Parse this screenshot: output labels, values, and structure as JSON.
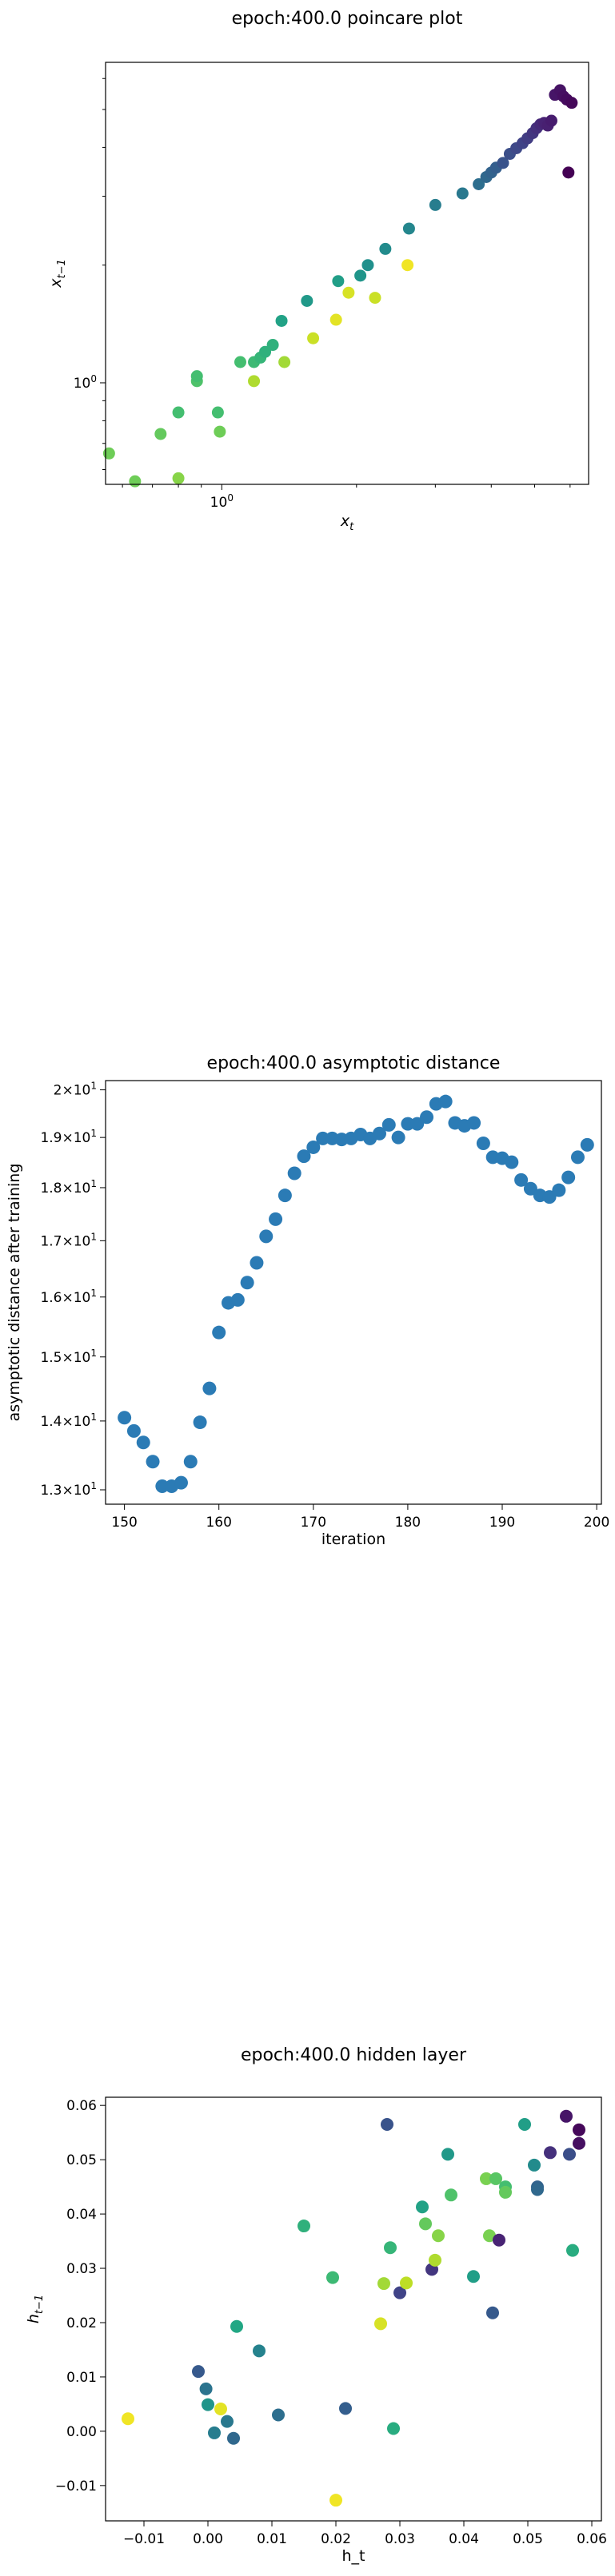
{
  "charts": [
    {
      "type": "scatter",
      "title": "epoch:400.0 poincare plot",
      "xlabel": "x_t",
      "ylabel": "x_{t−1}",
      "xscale": "log",
      "yscale": "log",
      "xlim": [
        0.55,
        6.6
      ],
      "ylim": [
        0.55,
        6.6
      ],
      "xticks": [
        {
          "value": 1,
          "label": "10^0"
        }
      ],
      "yticks": [
        {
          "value": 1,
          "label": "10^0"
        }
      ],
      "color_map": "viridis",
      "points": [
        {
          "x": 0.56,
          "y": 0.66,
          "c": 0.78
        },
        {
          "x": 0.64,
          "y": 0.56,
          "c": 0.78
        },
        {
          "x": 0.73,
          "y": 0.74,
          "c": 0.76
        },
        {
          "x": 0.8,
          "y": 0.84,
          "c": 0.7
        },
        {
          "x": 0.8,
          "y": 0.57,
          "c": 0.82
        },
        {
          "x": 0.88,
          "y": 1.01,
          "c": 0.72
        },
        {
          "x": 0.88,
          "y": 1.04,
          "c": 0.7
        },
        {
          "x": 0.98,
          "y": 0.84,
          "c": 0.7
        },
        {
          "x": 0.99,
          "y": 0.75,
          "c": 0.78
        },
        {
          "x": 1.1,
          "y": 1.13,
          "c": 0.7
        },
        {
          "x": 1.18,
          "y": 1.13,
          "c": 0.68
        },
        {
          "x": 1.18,
          "y": 1.01,
          "c": 0.88
        },
        {
          "x": 1.22,
          "y": 1.16,
          "c": 0.66
        },
        {
          "x": 1.25,
          "y": 1.2,
          "c": 0.64
        },
        {
          "x": 1.3,
          "y": 1.25,
          "c": 0.64
        },
        {
          "x": 1.38,
          "y": 1.13,
          "c": 0.86
        },
        {
          "x": 1.36,
          "y": 1.44,
          "c": 0.58
        },
        {
          "x": 1.55,
          "y": 1.62,
          "c": 0.54
        },
        {
          "x": 1.6,
          "y": 1.3,
          "c": 0.92
        },
        {
          "x": 1.8,
          "y": 1.45,
          "c": 0.96
        },
        {
          "x": 1.82,
          "y": 1.82,
          "c": 0.56
        },
        {
          "x": 1.92,
          "y": 1.7,
          "c": 0.94
        },
        {
          "x": 2.04,
          "y": 1.88,
          "c": 0.52
        },
        {
          "x": 2.12,
          "y": 2.0,
          "c": 0.5
        },
        {
          "x": 2.2,
          "y": 1.65,
          "c": 0.92
        },
        {
          "x": 2.32,
          "y": 2.2,
          "c": 0.48
        },
        {
          "x": 2.6,
          "y": 2.0,
          "c": 0.98
        },
        {
          "x": 2.62,
          "y": 2.48,
          "c": 0.46
        },
        {
          "x": 3.0,
          "y": 2.85,
          "c": 0.42
        },
        {
          "x": 3.45,
          "y": 3.05,
          "c": 0.4
        },
        {
          "x": 3.75,
          "y": 3.22,
          "c": 0.36
        },
        {
          "x": 3.9,
          "y": 3.36,
          "c": 0.34
        },
        {
          "x": 4.0,
          "y": 3.45,
          "c": 0.32
        },
        {
          "x": 4.1,
          "y": 3.55,
          "c": 0.3
        },
        {
          "x": 4.25,
          "y": 3.65,
          "c": 0.26
        },
        {
          "x": 4.4,
          "y": 3.85,
          "c": 0.24
        },
        {
          "x": 4.55,
          "y": 3.98,
          "c": 0.22
        },
        {
          "x": 4.7,
          "y": 4.1,
          "c": 0.2
        },
        {
          "x": 4.82,
          "y": 4.22,
          "c": 0.18
        },
        {
          "x": 4.95,
          "y": 4.35,
          "c": 0.16
        },
        {
          "x": 5.05,
          "y": 4.48,
          "c": 0.14
        },
        {
          "x": 5.15,
          "y": 4.58,
          "c": 0.12
        },
        {
          "x": 5.25,
          "y": 4.62,
          "c": 0.1
        },
        {
          "x": 5.35,
          "y": 4.55,
          "c": 0.09
        },
        {
          "x": 5.45,
          "y": 4.68,
          "c": 0.08
        },
        {
          "x": 5.55,
          "y": 5.45,
          "c": 0.06
        },
        {
          "x": 5.7,
          "y": 5.6,
          "c": 0.05
        },
        {
          "x": 5.8,
          "y": 5.4,
          "c": 0.04
        },
        {
          "x": 5.9,
          "y": 5.3,
          "c": 0.03
        },
        {
          "x": 6.05,
          "y": 5.2,
          "c": 0.02
        },
        {
          "x": 5.95,
          "y": 3.45,
          "c": 0.0
        }
      ]
    },
    {
      "type": "scatter",
      "title": "epoch:400.0 asymptotic distance",
      "xlabel": "iteration",
      "ylabel": "asymptotic distance after training",
      "xscale": "linear",
      "yscale": "log",
      "xlim": [
        148,
        200.5
      ],
      "ylim": [
        12.8,
        20.2
      ],
      "xticks": [
        {
          "value": 150,
          "label": "150"
        },
        {
          "value": 160,
          "label": "160"
        },
        {
          "value": 170,
          "label": "170"
        },
        {
          "value": 180,
          "label": "180"
        },
        {
          "value": 190,
          "label": "190"
        },
        {
          "value": 200,
          "label": "200"
        }
      ],
      "yticks": [
        {
          "value": 13,
          "label": "1.3×10^1"
        },
        {
          "value": 14,
          "label": "1.4×10^1"
        },
        {
          "value": 15,
          "label": "1.5×10^1"
        },
        {
          "value": 16,
          "label": "1.6×10^1"
        },
        {
          "value": 17,
          "label": "1.7×10^1"
        },
        {
          "value": 18,
          "label": "1.8×10^1"
        },
        {
          "value": 19,
          "label": "1.9×10^1"
        },
        {
          "value": 20,
          "label": "2×10^1"
        }
      ],
      "color": "#2b7bb5",
      "points": [
        {
          "x": 150,
          "y": 14.05
        },
        {
          "x": 151,
          "y": 13.85
        },
        {
          "x": 152,
          "y": 13.68
        },
        {
          "x": 153,
          "y": 13.4
        },
        {
          "x": 154,
          "y": 13.05
        },
        {
          "x": 155,
          "y": 13.05
        },
        {
          "x": 156,
          "y": 13.1
        },
        {
          "x": 157,
          "y": 13.4
        },
        {
          "x": 158,
          "y": 13.98
        },
        {
          "x": 159,
          "y": 14.5
        },
        {
          "x": 160,
          "y": 15.4
        },
        {
          "x": 161,
          "y": 15.9
        },
        {
          "x": 162,
          "y": 15.95
        },
        {
          "x": 163,
          "y": 16.25
        },
        {
          "x": 164,
          "y": 16.6
        },
        {
          "x": 165,
          "y": 17.08
        },
        {
          "x": 166,
          "y": 17.4
        },
        {
          "x": 167,
          "y": 17.85
        },
        {
          "x": 168,
          "y": 18.28
        },
        {
          "x": 169,
          "y": 18.62
        },
        {
          "x": 170,
          "y": 18.8
        },
        {
          "x": 171,
          "y": 18.98
        },
        {
          "x": 172,
          "y": 18.98
        },
        {
          "x": 173,
          "y": 18.96
        },
        {
          "x": 174,
          "y": 18.98
        },
        {
          "x": 175,
          "y": 19.06
        },
        {
          "x": 176,
          "y": 18.98
        },
        {
          "x": 177,
          "y": 19.08
        },
        {
          "x": 178,
          "y": 19.26
        },
        {
          "x": 179,
          "y": 19.0
        },
        {
          "x": 180,
          "y": 19.28
        },
        {
          "x": 181,
          "y": 19.28
        },
        {
          "x": 182,
          "y": 19.42
        },
        {
          "x": 183,
          "y": 19.7
        },
        {
          "x": 184,
          "y": 19.75
        },
        {
          "x": 185,
          "y": 19.3
        },
        {
          "x": 186,
          "y": 19.24
        },
        {
          "x": 187,
          "y": 19.3
        },
        {
          "x": 188,
          "y": 18.88
        },
        {
          "x": 189,
          "y": 18.6
        },
        {
          "x": 190,
          "y": 18.58
        },
        {
          "x": 191,
          "y": 18.5
        },
        {
          "x": 192,
          "y": 18.15
        },
        {
          "x": 193,
          "y": 17.98
        },
        {
          "x": 194,
          "y": 17.85
        },
        {
          "x": 195,
          "y": 17.82
        },
        {
          "x": 196,
          "y": 17.95
        },
        {
          "x": 197,
          "y": 18.2
        },
        {
          "x": 198,
          "y": 18.6
        },
        {
          "x": 199,
          "y": 18.85
        }
      ]
    },
    {
      "type": "scatter",
      "title": "epoch:400.0 hidden layer",
      "xlabel": "h_t",
      "ylabel": "h_{t−1}",
      "xscale": "linear",
      "yscale": "linear",
      "xlim": [
        -0.016,
        0.0615
      ],
      "ylim": [
        -0.0165,
        0.0615
      ],
      "xticks": [
        {
          "value": -0.01,
          "label": "−0.01"
        },
        {
          "value": 0.0,
          "label": "0.00"
        },
        {
          "value": 0.01,
          "label": "0.01"
        },
        {
          "value": 0.02,
          "label": "0.02"
        },
        {
          "value": 0.03,
          "label": "0.03"
        },
        {
          "value": 0.04,
          "label": "0.04"
        },
        {
          "value": 0.05,
          "label": "0.05"
        },
        {
          "value": 0.06,
          "label": "0.06"
        }
      ],
      "yticks": [
        {
          "value": -0.01,
          "label": "−0.01"
        },
        {
          "value": 0.0,
          "label": "0.00"
        },
        {
          "value": 0.01,
          "label": "0.01"
        },
        {
          "value": 0.02,
          "label": "0.02"
        },
        {
          "value": 0.03,
          "label": "0.03"
        },
        {
          "value": 0.04,
          "label": "0.04"
        },
        {
          "value": 0.05,
          "label": "0.05"
        },
        {
          "value": 0.06,
          "label": "0.06"
        }
      ],
      "color_map": "viridis",
      "points": [
        {
          "x": -0.0125,
          "y": 0.0023,
          "c": 0.98
        },
        {
          "x": -0.0015,
          "y": 0.011,
          "c": 0.28
        },
        {
          "x": -0.0003,
          "y": 0.0078,
          "c": 0.38
        },
        {
          "x": 0.0,
          "y": 0.0049,
          "c": 0.52
        },
        {
          "x": 0.001,
          "y": -0.0003,
          "c": 0.42
        },
        {
          "x": 0.002,
          "y": 0.0041,
          "c": 0.96
        },
        {
          "x": 0.003,
          "y": 0.0018,
          "c": 0.4
        },
        {
          "x": 0.004,
          "y": -0.0013,
          "c": 0.34
        },
        {
          "x": 0.0045,
          "y": 0.0193,
          "c": 0.6
        },
        {
          "x": 0.008,
          "y": 0.0148,
          "c": 0.44
        },
        {
          "x": 0.011,
          "y": 0.003,
          "c": 0.36
        },
        {
          "x": 0.015,
          "y": 0.0378,
          "c": 0.64
        },
        {
          "x": 0.0195,
          "y": 0.0283,
          "c": 0.68
        },
        {
          "x": 0.02,
          "y": -0.0127,
          "c": 0.98
        },
        {
          "x": 0.0215,
          "y": 0.0042,
          "c": 0.3
        },
        {
          "x": 0.027,
          "y": 0.0198,
          "c": 0.94
        },
        {
          "x": 0.0275,
          "y": 0.0272,
          "c": 0.86
        },
        {
          "x": 0.028,
          "y": 0.0565,
          "c": 0.26
        },
        {
          "x": 0.0285,
          "y": 0.0338,
          "c": 0.66
        },
        {
          "x": 0.029,
          "y": 0.0005,
          "c": 0.62
        },
        {
          "x": 0.03,
          "y": 0.0255,
          "c": 0.2
        },
        {
          "x": 0.031,
          "y": 0.0273,
          "c": 0.9
        },
        {
          "x": 0.0335,
          "y": 0.0413,
          "c": 0.58
        },
        {
          "x": 0.034,
          "y": 0.0382,
          "c": 0.76
        },
        {
          "x": 0.035,
          "y": 0.0298,
          "c": 0.16
        },
        {
          "x": 0.0355,
          "y": 0.0315,
          "c": 0.88
        },
        {
          "x": 0.036,
          "y": 0.036,
          "c": 0.82
        },
        {
          "x": 0.0375,
          "y": 0.051,
          "c": 0.54
        },
        {
          "x": 0.038,
          "y": 0.0435,
          "c": 0.72
        },
        {
          "x": 0.0415,
          "y": 0.0285,
          "c": 0.56
        },
        {
          "x": 0.0435,
          "y": 0.0465,
          "c": 0.8
        },
        {
          "x": 0.044,
          "y": 0.036,
          "c": 0.8
        },
        {
          "x": 0.0445,
          "y": 0.0218,
          "c": 0.28
        },
        {
          "x": 0.045,
          "y": 0.0465,
          "c": 0.74
        },
        {
          "x": 0.0455,
          "y": 0.0352,
          "c": 0.1
        },
        {
          "x": 0.0465,
          "y": 0.045,
          "c": 0.7
        },
        {
          "x": 0.0465,
          "y": 0.044,
          "c": 0.76
        },
        {
          "x": 0.0495,
          "y": 0.0565,
          "c": 0.56
        },
        {
          "x": 0.051,
          "y": 0.049,
          "c": 0.48
        },
        {
          "x": 0.0515,
          "y": 0.045,
          "c": 0.32
        },
        {
          "x": 0.0515,
          "y": 0.0445,
          "c": 0.34
        },
        {
          "x": 0.0535,
          "y": 0.0513,
          "c": 0.14
        },
        {
          "x": 0.056,
          "y": 0.058,
          "c": 0.06
        },
        {
          "x": 0.0565,
          "y": 0.051,
          "c": 0.24
        },
        {
          "x": 0.057,
          "y": 0.0333,
          "c": 0.62
        },
        {
          "x": 0.058,
          "y": 0.0555,
          "c": 0.02
        },
        {
          "x": 0.058,
          "y": 0.053,
          "c": 0.04
        }
      ]
    }
  ]
}
